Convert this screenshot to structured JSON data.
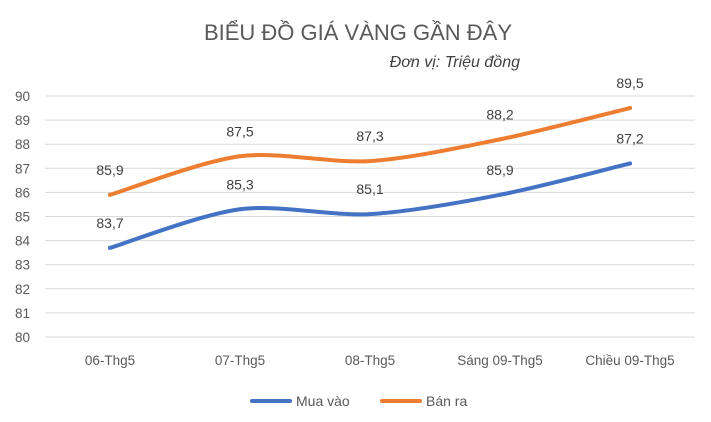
{
  "chart_data": {
    "type": "line",
    "title": "BIỂU ĐỒ GIÁ VÀNG GẦN ĐÂY",
    "subtitle": "Đơn vị: Triệu đồng",
    "categories": [
      "06-Thg5",
      "07-Thg5",
      "08-Thg5",
      "Sáng 09-Thg5",
      "Chiều 09-Thg5"
    ],
    "ylim": [
      80,
      90
    ],
    "yticks": [
      80,
      81,
      82,
      83,
      84,
      85,
      86,
      87,
      88,
      89,
      90
    ],
    "grid": true,
    "legend_position": "bottom",
    "series": [
      {
        "name": "Mua vào",
        "color": "#4472c4",
        "values": [
          83.7,
          85.3,
          85.1,
          85.9,
          87.2
        ],
        "labels": [
          "83,7",
          "85,3",
          "85,1",
          "85,9",
          "87,2"
        ]
      },
      {
        "name": "Bán ra",
        "color": "#ed7d31",
        "values": [
          85.9,
          87.5,
          87.3,
          88.2,
          89.5
        ],
        "labels": [
          "85,9",
          "87,5",
          "87,3",
          "88,2",
          "89,5"
        ]
      }
    ]
  }
}
